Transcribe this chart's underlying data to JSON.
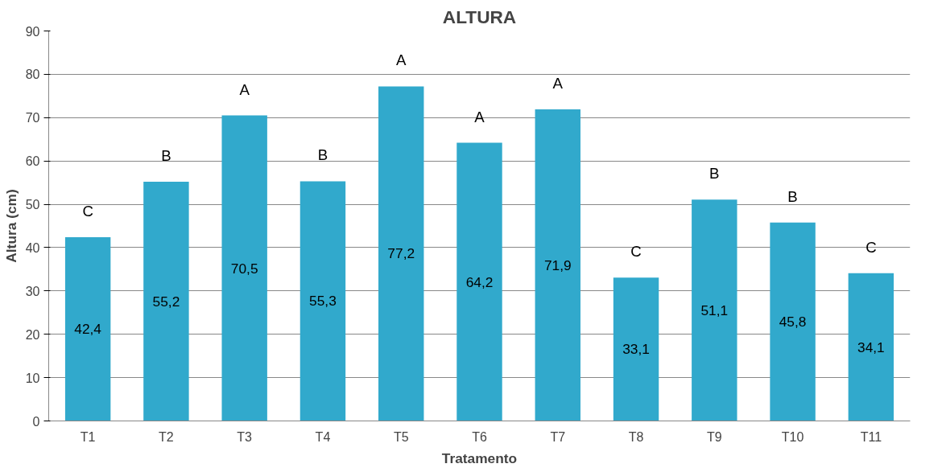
{
  "chart_data": {
    "type": "bar",
    "title": "ALTURA",
    "xlabel": "Tratamento",
    "ylabel": "Altura (cm)",
    "categories": [
      "T1",
      "T2",
      "T3",
      "T4",
      "T5",
      "T6",
      "T7",
      "T8",
      "T9",
      "T10",
      "T11"
    ],
    "values": [
      42.4,
      55.2,
      70.5,
      55.3,
      77.2,
      64.2,
      71.9,
      33.1,
      51.1,
      45.8,
      34.1
    ],
    "value_labels": [
      "42,4",
      "55,2",
      "70,5",
      "55,3",
      "77,2",
      "64,2",
      "71,9",
      "33,1",
      "51,1",
      "45,8",
      "34,1"
    ],
    "color": "#31a9cc",
    "ylim": [
      0,
      90
    ],
    "yticks": [
      0,
      10,
      20,
      30,
      40,
      50,
      60,
      70,
      80,
      90
    ],
    "grid": "y",
    "annotations": [
      "C",
      "B",
      "A",
      "B",
      "A",
      "A",
      "A",
      "C",
      "B",
      "B",
      "C"
    ]
  }
}
